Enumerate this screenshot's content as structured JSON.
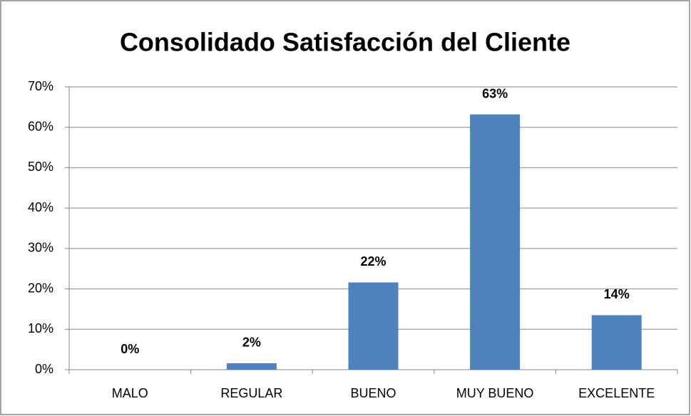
{
  "chart_data": {
    "type": "bar",
    "title": "Consolidado Satisfacción del Cliente",
    "categories": [
      "MALO",
      "REGULAR",
      "BUENO",
      "MUY BUENO",
      "EXCELENTE"
    ],
    "values": [
      0,
      1.6,
      21.6,
      63.2,
      13.5
    ],
    "value_labels": [
      "0%",
      "2%",
      "22%",
      "63%",
      "14%"
    ],
    "color": "#4f81bd",
    "ylim": [
      0,
      70
    ],
    "yticks": [
      {
        "value": 0,
        "label": "0%"
      },
      {
        "value": 10,
        "label": "10%"
      },
      {
        "value": 20,
        "label": "20%"
      },
      {
        "value": 30,
        "label": "30%"
      },
      {
        "value": 40,
        "label": "40%"
      },
      {
        "value": 50,
        "label": "50%"
      },
      {
        "value": 60,
        "label": "60%"
      },
      {
        "value": 70,
        "label": "70%"
      }
    ],
    "grid": true
  }
}
